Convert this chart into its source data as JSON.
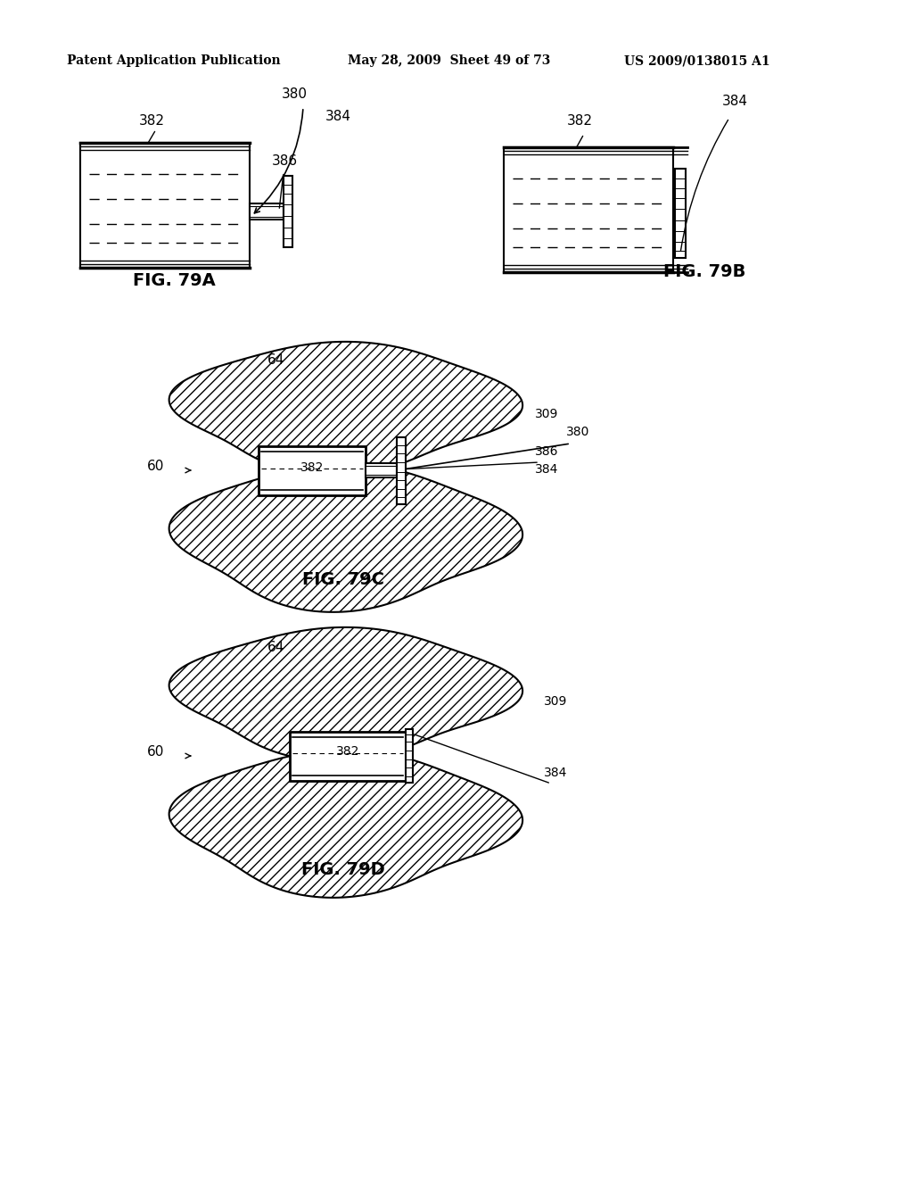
{
  "background_color": "#ffffff",
  "header_left": "Patent Application Publication",
  "header_mid": "May 28, 2009  Sheet 49 of 73",
  "header_right": "US 2009/0138015 A1",
  "fig79A_label": "FIG. 79A",
  "fig79B_label": "FIG. 79B",
  "fig79C_label": "FIG. 79C",
  "fig79D_label": "FIG. 79D",
  "text_color": "#000000"
}
